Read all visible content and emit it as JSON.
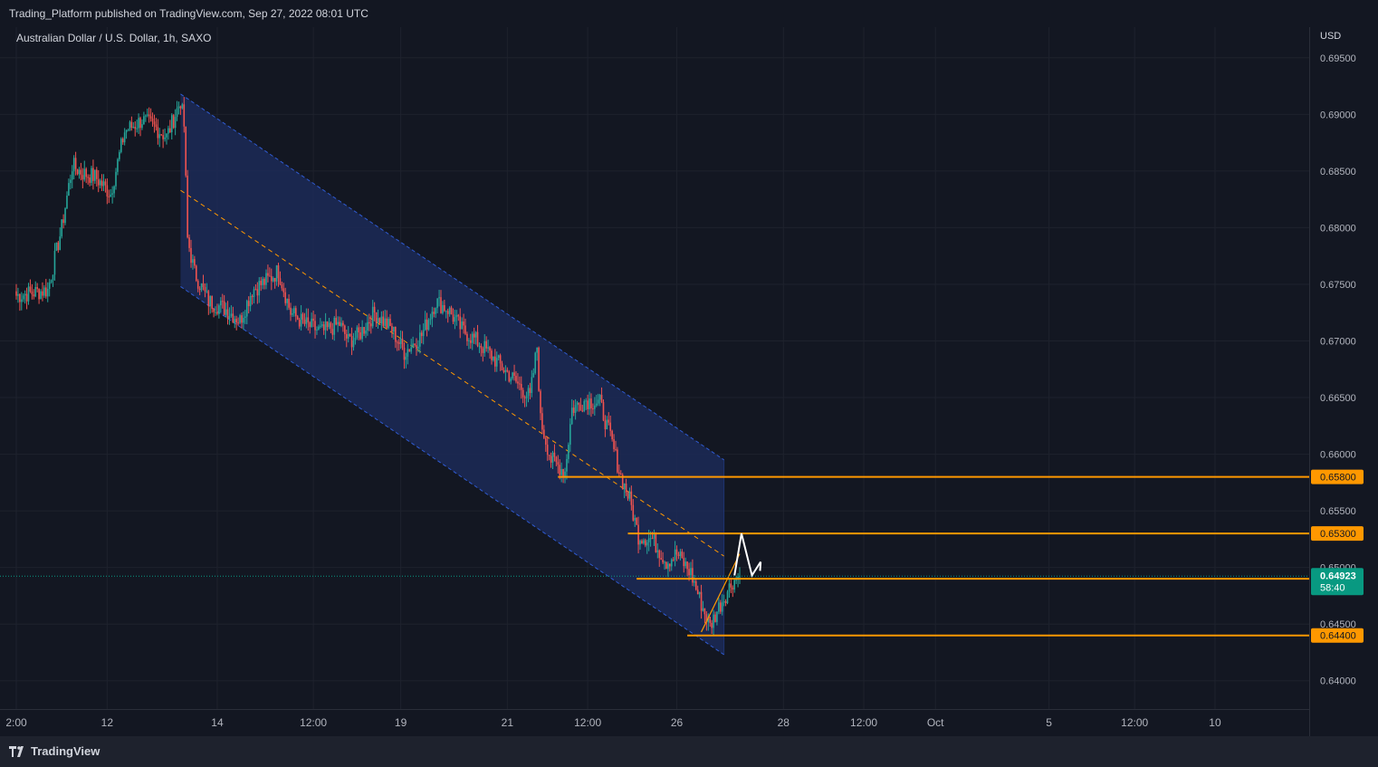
{
  "header": {
    "published": "Trading_Platform published on TradingView.com, Sep 27, 2022 08:01 UTC",
    "symbol": "Australian Dollar / U.S. Dollar, 1h, SAXO",
    "currency": "USD"
  },
  "footer": {
    "brand": "TradingView",
    "logo_icon": "tradingview-logo-icon"
  },
  "colors": {
    "background": "#131722",
    "grid": "#1e222d",
    "up": "#26a69a",
    "down": "#ef5350",
    "channel_fill": "#1c2a57",
    "channel_border": "#2f5bd3",
    "orange": "#ff9800",
    "white": "#ffffff",
    "current": "#089981"
  },
  "chart_data": {
    "type": "candlestick",
    "symbol": "AUDUSD",
    "timeframe": "1h",
    "y_axis": {
      "ticks": [
        0.64,
        0.645,
        0.65,
        0.655,
        0.66,
        0.665,
        0.67,
        0.675,
        0.68,
        0.685,
        0.69,
        0.695
      ],
      "tick_labels": [
        "0.64000",
        "0.64500",
        "0.65000",
        "0.65500",
        "0.66000",
        "0.66500",
        "0.67000",
        "0.67500",
        "0.68000",
        "0.68500",
        "0.69000",
        "0.69500"
      ],
      "range": [
        0.6375,
        0.6977
      ]
    },
    "x_axis": {
      "tick_labels": [
        "2:00",
        "12",
        "14",
        "12:00",
        "19",
        "21",
        "12:00",
        "26",
        "28",
        "12:00",
        "Oct",
        "5",
        "12:00",
        "10"
      ],
      "tick_bars": [
        0,
        52,
        115,
        170,
        220,
        281,
        327,
        378,
        439,
        485,
        526,
        591,
        640,
        686
      ]
    },
    "price_path": [
      [
        0,
        0.674
      ],
      [
        18,
        0.6745
      ],
      [
        26,
        0.68
      ],
      [
        32,
        0.6855
      ],
      [
        38,
        0.6848
      ],
      [
        45,
        0.6845
      ],
      [
        54,
        0.683
      ],
      [
        62,
        0.6885
      ],
      [
        72,
        0.6895
      ],
      [
        80,
        0.6888
      ],
      [
        86,
        0.688
      ],
      [
        94,
        0.6912
      ],
      [
        96,
        0.689
      ],
      [
        98,
        0.679
      ],
      [
        102,
        0.676
      ],
      [
        110,
        0.6735
      ],
      [
        120,
        0.6728
      ],
      [
        128,
        0.6718
      ],
      [
        135,
        0.6745
      ],
      [
        145,
        0.6755
      ],
      [
        150,
        0.6762
      ],
      [
        157,
        0.6725
      ],
      [
        165,
        0.6715
      ],
      [
        175,
        0.6708
      ],
      [
        185,
        0.6715
      ],
      [
        190,
        0.67
      ],
      [
        196,
        0.6705
      ],
      [
        205,
        0.6725
      ],
      [
        215,
        0.671
      ],
      [
        222,
        0.669
      ],
      [
        232,
        0.6705
      ],
      [
        240,
        0.6735
      ],
      [
        247,
        0.6728
      ],
      [
        255,
        0.671
      ],
      [
        265,
        0.6698
      ],
      [
        276,
        0.668
      ],
      [
        287,
        0.6662
      ],
      [
        294,
        0.665
      ],
      [
        298,
        0.6695
      ],
      [
        300,
        0.663
      ],
      [
        306,
        0.6595
      ],
      [
        314,
        0.6585
      ],
      [
        318,
        0.664
      ],
      [
        326,
        0.6648
      ],
      [
        334,
        0.6645
      ],
      [
        340,
        0.6615
      ],
      [
        346,
        0.658
      ],
      [
        351,
        0.656
      ],
      [
        356,
        0.6528
      ],
      [
        364,
        0.6525
      ],
      [
        372,
        0.6505
      ],
      [
        378,
        0.6512
      ],
      [
        386,
        0.6495
      ],
      [
        392,
        0.6468
      ],
      [
        397,
        0.6448
      ],
      [
        402,
        0.6465
      ],
      [
        410,
        0.6488
      ],
      [
        414,
        0.6492
      ]
    ],
    "channel": {
      "upper_start": [
        94,
        0.6918
      ],
      "upper_end": [
        405,
        0.6595
      ],
      "lower_start": [
        94,
        0.6748
      ],
      "lower_end": [
        405,
        0.6423
      ],
      "median_start": [
        94,
        0.6833
      ],
      "median_end": [
        405,
        0.651
      ]
    },
    "levels": [
      {
        "price": 0.658,
        "label": "0.65800",
        "from_bar": 310
      },
      {
        "price": 0.653,
        "label": "0.65300",
        "from_bar": 350
      },
      {
        "price": 0.649,
        "label": "0.64900",
        "from_bar": 355
      },
      {
        "price": 0.644,
        "label": "0.64400",
        "from_bar": 384
      }
    ],
    "projection": [
      [
        411,
        0.6493
      ],
      [
        415,
        0.653
      ],
      [
        421,
        0.6493
      ],
      [
        426,
        0.6505
      ]
    ],
    "support_trendline": [
      [
        392,
        0.6443
      ],
      [
        414,
        0.6512
      ]
    ],
    "current_price": {
      "price": 0.64923,
      "label": "0.64923",
      "countdown": "58:40"
    }
  }
}
